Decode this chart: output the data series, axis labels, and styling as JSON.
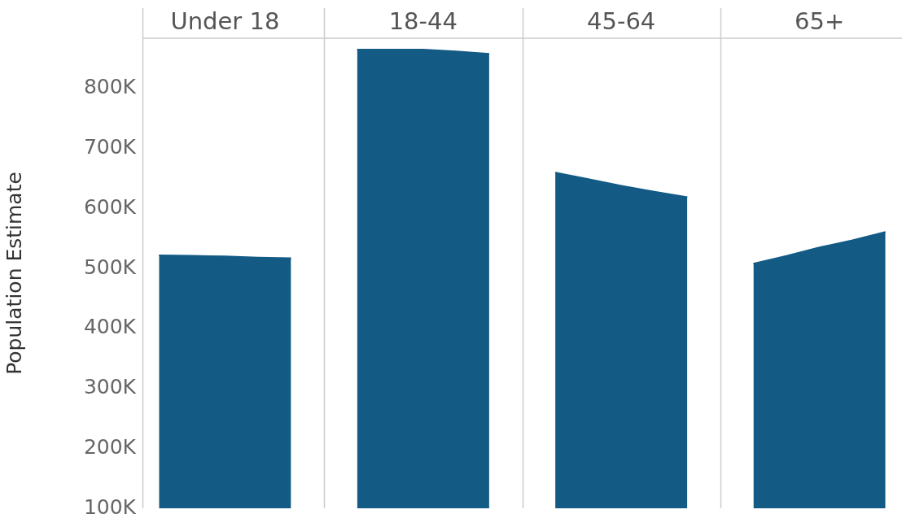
{
  "chart_data": {
    "type": "area",
    "ylabel": "Population Estimate",
    "annotations": [
      "Under 18",
      "18-44",
      "45-64",
      "65+"
    ],
    "categories": [
      null,
      null,
      null,
      null,
      null,
      null,
      null,
      null,
      null,
      null,
      null,
      null,
      null,
      null,
      null,
      null,
      null,
      null,
      null,
      null,
      null,
      null,
      null
    ],
    "series": [
      {
        "color": "#135b85",
        "values": [
          522000,
          521000,
          520000,
          518000,
          517000,
          null,
          null,
          null,
          null,
          null,
          null,
          null,
          null,
          null,
          null,
          null,
          null,
          null,
          null,
          null,
          null,
          null,
          null
        ]
      },
      {
        "color": "#135b85",
        "values": [
          null,
          null,
          null,
          null,
          null,
          null,
          865000,
          865000,
          865000,
          862000,
          858000,
          null,
          null,
          null,
          null,
          null,
          null,
          null,
          null,
          null,
          null,
          null,
          null
        ]
      },
      {
        "color": "#135b85",
        "values": [
          null,
          null,
          null,
          null,
          null,
          null,
          null,
          null,
          null,
          null,
          null,
          null,
          660000,
          649000,
          638000,
          628000,
          619000,
          null,
          null,
          null,
          null,
          null,
          null
        ]
      },
      {
        "color": "#135b85",
        "values": [
          null,
          null,
          null,
          null,
          null,
          null,
          null,
          null,
          null,
          null,
          null,
          null,
          null,
          null,
          null,
          null,
          null,
          null,
          508000,
          521000,
          535000,
          547000,
          561000
        ]
      }
    ],
    "ylim": [
      100000,
      884000
    ],
    "yticks": [
      {
        "value": 100000,
        "label": "100K"
      },
      {
        "value": 200000,
        "label": "200K"
      },
      {
        "value": 300000,
        "label": "300K"
      },
      {
        "value": 400000,
        "label": "400K"
      },
      {
        "value": 500000,
        "label": "500K"
      },
      {
        "value": 600000,
        "label": "600K"
      },
      {
        "value": 700000,
        "label": "700K"
      },
      {
        "value": 800000,
        "label": "800K"
      }
    ],
    "tick_labels": "y",
    "grid": "x",
    "legend": false
  }
}
